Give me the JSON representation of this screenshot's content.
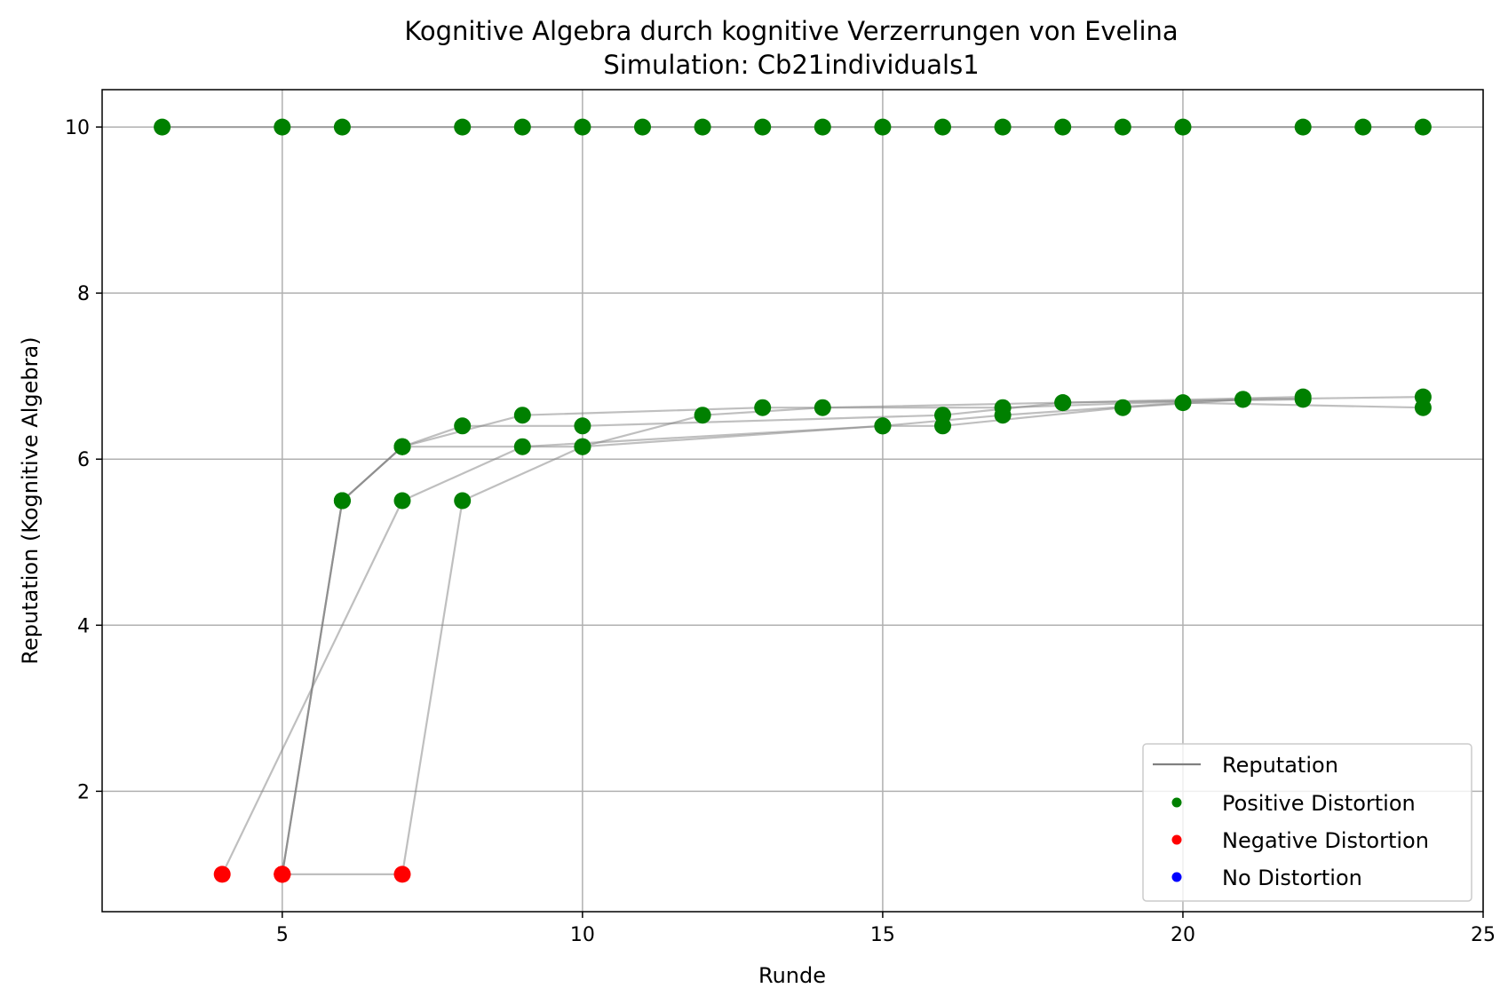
{
  "chart_data": {
    "type": "line",
    "title": "Kognitive Algebra durch kognitive Verzerrungen von Evelina",
    "subtitle": "Simulation: Cb21individuals1",
    "xlabel": "Runde",
    "ylabel": "Reputation (Kognitive Algebra)",
    "xlim": [
      2,
      25
    ],
    "ylim": [
      0.55,
      10.45
    ],
    "xticks": [
      5,
      10,
      15,
      20,
      25
    ],
    "yticks": [
      2,
      4,
      6,
      8,
      10
    ],
    "grid": true,
    "legend_position": "lower-right",
    "legend": [
      {
        "label": "Reputation",
        "kind": "line",
        "color": "#808080"
      },
      {
        "label": "Positive Distortion",
        "kind": "marker",
        "color": "#008000"
      },
      {
        "label": "Negative Distortion",
        "kind": "marker",
        "color": "#ff0000"
      },
      {
        "label": "No Distortion",
        "kind": "marker",
        "color": "#0000ff"
      }
    ],
    "series": [
      {
        "points": [
          [
            3,
            10
          ],
          [
            5,
            10
          ],
          [
            6,
            10
          ],
          [
            8,
            10
          ],
          [
            9,
            10
          ],
          [
            10,
            10
          ],
          [
            11,
            10
          ],
          [
            12,
            10
          ],
          [
            13,
            10
          ],
          [
            14,
            10
          ],
          [
            15,
            10
          ],
          [
            16,
            10
          ],
          [
            17,
            10
          ],
          [
            18,
            10
          ],
          [
            19,
            10
          ],
          [
            20,
            10
          ],
          [
            22,
            10
          ],
          [
            23,
            10
          ],
          [
            24,
            10
          ]
        ],
        "distortion": [
          "positive",
          "positive",
          "positive",
          "positive",
          "positive",
          "positive",
          "positive",
          "positive",
          "positive",
          "positive",
          "positive",
          "positive",
          "positive",
          "positive",
          "positive",
          "positive",
          "positive",
          "positive",
          "positive"
        ]
      },
      {
        "points": [
          [
            5,
            1
          ],
          [
            6,
            5.5
          ],
          [
            7,
            6.15
          ],
          [
            8,
            6.4
          ],
          [
            10,
            6.4
          ],
          [
            16,
            6.53
          ],
          [
            18,
            6.68
          ],
          [
            22,
            6.75
          ]
        ],
        "distortion": [
          "negative",
          "positive",
          "positive",
          "positive",
          "positive",
          "positive",
          "positive",
          "positive"
        ]
      },
      {
        "points": [
          [
            5,
            1
          ],
          [
            6,
            5.5
          ],
          [
            7,
            6.15
          ],
          [
            9,
            6.53
          ],
          [
            13,
            6.62
          ],
          [
            17,
            6.62
          ],
          [
            21,
            6.72
          ],
          [
            24,
            6.75
          ]
        ],
        "distortion": [
          "negative",
          "positive",
          "positive",
          "positive",
          "positive",
          "positive",
          "positive",
          "positive"
        ]
      },
      {
        "points": [
          [
            4,
            1
          ],
          [
            7,
            5.5
          ],
          [
            9,
            6.15
          ],
          [
            15,
            6.4
          ],
          [
            17,
            6.53
          ],
          [
            20,
            6.68
          ],
          [
            24,
            6.62
          ]
        ],
        "distortion": [
          "negative",
          "positive",
          "positive",
          "positive",
          "positive",
          "positive",
          "positive"
        ]
      },
      {
        "points": [
          [
            5,
            1
          ],
          [
            7,
            1
          ],
          [
            8,
            5.5
          ],
          [
            10,
            6.15
          ],
          [
            12,
            6.53
          ],
          [
            14,
            6.62
          ],
          [
            18,
            6.68
          ],
          [
            22,
            6.72
          ]
        ],
        "distortion": [
          "negative",
          "negative",
          "positive",
          "positive",
          "positive",
          "positive",
          "positive",
          "positive"
        ]
      },
      {
        "points": [
          [
            5,
            1
          ],
          [
            6,
            5.5
          ],
          [
            7,
            6.15
          ],
          [
            10,
            6.15
          ],
          [
            15,
            6.4
          ],
          [
            16,
            6.4
          ],
          [
            19,
            6.62
          ],
          [
            21,
            6.72
          ]
        ],
        "distortion": [
          "negative",
          "positive",
          "positive",
          "positive",
          "positive",
          "positive",
          "positive",
          "positive"
        ]
      }
    ],
    "colors": {
      "positive": "#008000",
      "negative": "#ff0000",
      "none": "#0000ff",
      "reputation": "#808080"
    }
  }
}
